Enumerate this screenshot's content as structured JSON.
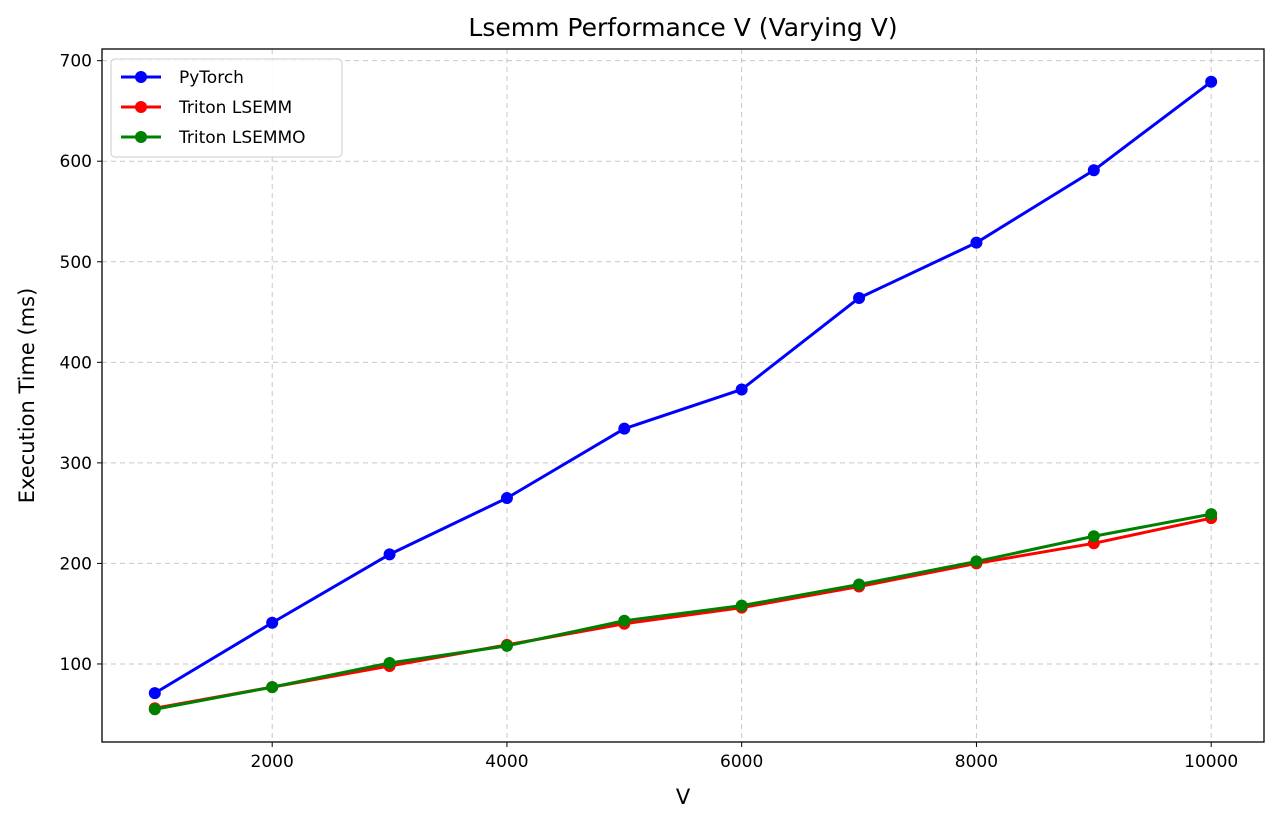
{
  "chart_data": {
    "type": "line",
    "title": "Lsemm Performance V (Varying V)",
    "xlabel": "V",
    "ylabel": "Execution Time (ms)",
    "x": [
      1000,
      2000,
      3000,
      4000,
      5000,
      6000,
      7000,
      8000,
      9000,
      10000
    ],
    "xlim": [
      550,
      10450
    ],
    "ylim": [
      22.4,
      711.6
    ],
    "xticks": [
      2000,
      4000,
      6000,
      8000,
      10000
    ],
    "yticks": [
      100,
      200,
      300,
      400,
      500,
      600,
      700
    ],
    "grid": true,
    "legend_position": "top-left",
    "series": [
      {
        "name": "PyTorch",
        "color": "#0000ff",
        "values": [
          71,
          141,
          209,
          265,
          334,
          373,
          464,
          519,
          591,
          679
        ]
      },
      {
        "name": "Triton LSEMM",
        "color": "#ff0000",
        "values": [
          56,
          77,
          98,
          119,
          140,
          156,
          177,
          200,
          220,
          245
        ]
      },
      {
        "name": "Triton LSEMMO",
        "color": "#008000",
        "values": [
          55,
          77,
          101,
          118,
          143,
          158,
          179,
          202,
          227,
          249
        ]
      }
    ]
  }
}
